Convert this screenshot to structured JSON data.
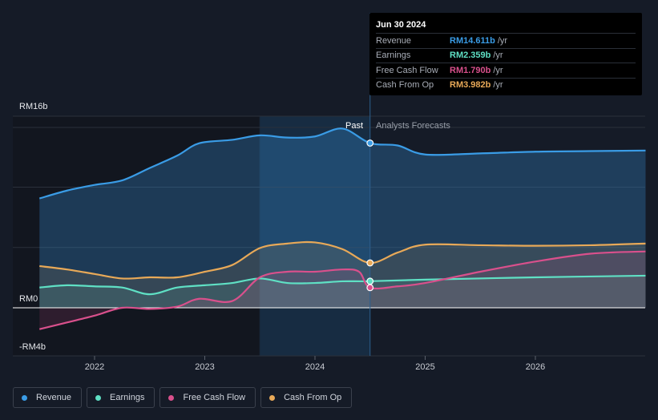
{
  "tooltip": {
    "date": "Jun 30 2024",
    "rows": [
      {
        "name": "Revenue",
        "value": "RM14.611b",
        "unit": "/yr",
        "color": "#3a9ce6"
      },
      {
        "name": "Earnings",
        "value": "RM2.359b",
        "unit": "/yr",
        "color": "#5fe0c4"
      },
      {
        "name": "Free Cash Flow",
        "value": "RM1.790b",
        "unit": "/yr",
        "color": "#d9508c"
      },
      {
        "name": "Cash From Op",
        "value": "RM3.982b",
        "unit": "/yr",
        "color": "#e8a958"
      }
    ]
  },
  "legend": [
    {
      "label": "Revenue",
      "color": "#3a9ce6"
    },
    {
      "label": "Earnings",
      "color": "#5fe0c4"
    },
    {
      "label": "Free Cash Flow",
      "color": "#d9508c"
    },
    {
      "label": "Cash From Op",
      "color": "#e8a958"
    }
  ],
  "chart_data": {
    "type": "area",
    "title": "",
    "y_axis_labels": [
      "RM16b",
      "RM0",
      "-RM4b"
    ],
    "ylim": [
      -4,
      16
    ],
    "xlim": [
      2021.5,
      2027.0
    ],
    "x_ticks": [
      2022,
      2023,
      2024,
      2025,
      2026
    ],
    "x_tick_labels": [
      "2022",
      "2023",
      "2024",
      "2025",
      "2026"
    ],
    "past_label": "Past",
    "forecast_label": "Analysts Forecasts",
    "highlight_range": [
      2023.5,
      2024.5
    ],
    "current_x": 2024.5,
    "series": [
      {
        "name": "Revenue",
        "color": "#3a9ce6",
        "x": [
          2021.5,
          2021.75,
          2022.0,
          2022.25,
          2022.5,
          2022.75,
          2022.95,
          2023.25,
          2023.5,
          2023.75,
          2024.0,
          2024.25,
          2024.5,
          2024.75,
          2025.0,
          2025.5,
          2026.0,
          2026.5,
          2027.0
        ],
        "y": [
          9.7,
          10.4,
          10.9,
          11.3,
          12.4,
          13.5,
          14.6,
          14.9,
          15.3,
          15.1,
          15.2,
          15.9,
          14.611,
          14.4,
          13.6,
          13.7,
          13.85,
          13.9,
          13.95
        ]
      },
      {
        "name": "Earnings",
        "color": "#5fe0c4",
        "x": [
          2021.5,
          2021.75,
          2022.0,
          2022.25,
          2022.5,
          2022.75,
          2023.0,
          2023.25,
          2023.5,
          2023.75,
          2024.0,
          2024.25,
          2024.5,
          2025.0,
          2026.0,
          2027.0
        ],
        "y": [
          1.8,
          2.0,
          1.9,
          1.8,
          1.2,
          1.8,
          2.0,
          2.2,
          2.6,
          2.2,
          2.2,
          2.35,
          2.359,
          2.5,
          2.7,
          2.85
        ]
      },
      {
        "name": "Free Cash Flow",
        "color": "#d9508c",
        "x": [
          2021.5,
          2021.75,
          2022.0,
          2022.25,
          2022.5,
          2022.75,
          2022.95,
          2023.25,
          2023.5,
          2023.75,
          2024.0,
          2024.25,
          2024.4,
          2024.5,
          2024.75,
          2025.0,
          2025.5,
          2026.0,
          2026.5,
          2027.0
        ],
        "y": [
          -1.9,
          -1.3,
          -0.7,
          0.0,
          -0.1,
          0.1,
          0.8,
          0.6,
          2.7,
          3.2,
          3.2,
          3.4,
          3.2,
          1.79,
          1.9,
          2.2,
          3.2,
          4.1,
          4.8,
          5.0
        ]
      },
      {
        "name": "Cash From Op",
        "color": "#e8a958",
        "x": [
          2021.5,
          2021.75,
          2022.0,
          2022.25,
          2022.5,
          2022.75,
          2023.0,
          2023.25,
          2023.5,
          2023.75,
          2024.0,
          2024.25,
          2024.5,
          2024.75,
          2025.0,
          2025.5,
          2026.0,
          2026.5,
          2027.0
        ],
        "y": [
          3.7,
          3.4,
          3.0,
          2.6,
          2.7,
          2.7,
          3.2,
          3.8,
          5.3,
          5.7,
          5.8,
          5.2,
          3.982,
          4.9,
          5.6,
          5.55,
          5.5,
          5.55,
          5.7
        ]
      }
    ]
  }
}
